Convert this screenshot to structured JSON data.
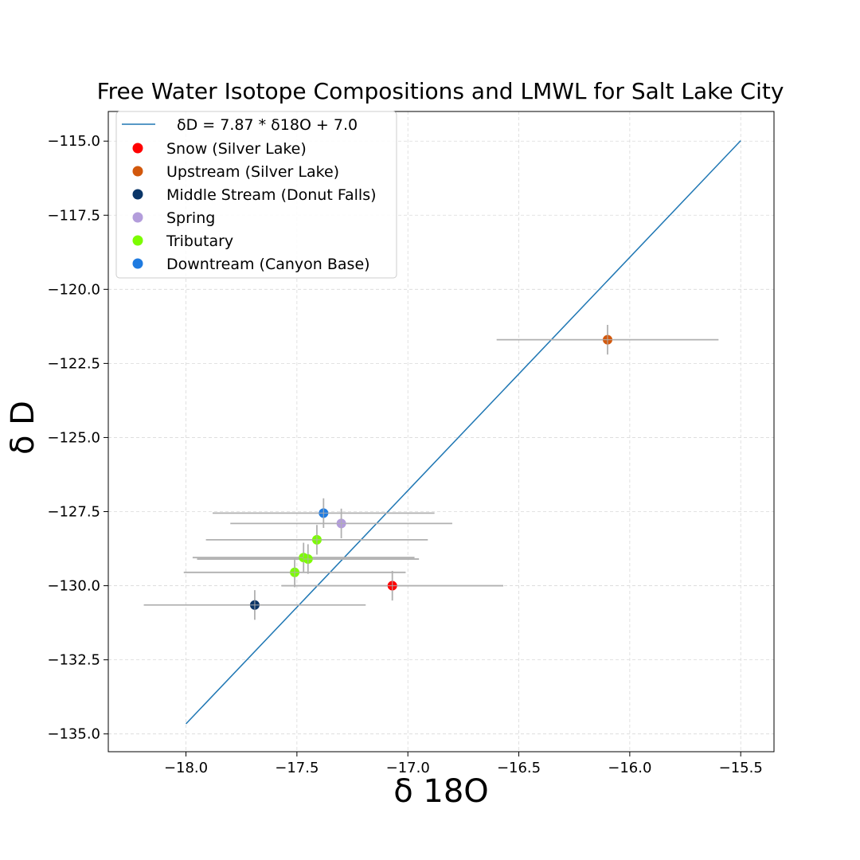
{
  "chart_data": {
    "type": "scatter",
    "title": "Free Water Isotope Compositions and LMWL for Salt Lake City",
    "xlabel": "δ 18O",
    "ylabel": "δ D",
    "xlim": [
      -18.35,
      -15.35
    ],
    "ylim": [
      -135.6,
      -114.0
    ],
    "xticks": [
      -18.0,
      -17.5,
      -17.0,
      -16.5,
      -16.0,
      -15.5
    ],
    "xtick_labels": [
      "−18.0",
      "−17.5",
      "−17.0",
      "−16.5",
      "−16.0",
      "−15.5"
    ],
    "yticks": [
      -135.0,
      -132.5,
      -130.0,
      -127.5,
      -125.0,
      -122.5,
      -120.0,
      -117.5,
      -115.0
    ],
    "ytick_labels": [
      "−135.0",
      "−132.5",
      "−130.0",
      "−127.5",
      "−125.0",
      "−122.5",
      "−120.0",
      "−117.5",
      "−115.0"
    ],
    "grid": true,
    "legend_position": "top-left",
    "lmwl": {
      "label": "δD = 7.87 * δ18O + 7.0",
      "slope": 7.87,
      "intercept": 7.0,
      "x_range": [
        -18.0,
        -15.5
      ],
      "color": "#1f77b4"
    },
    "error_color": "#b0b0b0",
    "series": [
      {
        "name": "Snow (Silver Lake)",
        "color": "#ff0000",
        "points": [
          {
            "x": -17.07,
            "y": -130.0,
            "xerr": 0.5,
            "yerr": 0.5
          }
        ]
      },
      {
        "name": "Upstream (Silver Lake)",
        "color": "#d2580c",
        "points": [
          {
            "x": -16.1,
            "y": -121.7,
            "xerr": 0.5,
            "yerr": 0.5
          }
        ]
      },
      {
        "name": "Middle Stream (Donut Falls)",
        "color": "#0b3668",
        "points": [
          {
            "x": -17.69,
            "y": -130.65,
            "xerr": 0.5,
            "yerr": 0.5
          }
        ]
      },
      {
        "name": "Spring",
        "color": "#b39ddb",
        "points": [
          {
            "x": -17.3,
            "y": -127.9,
            "xerr": 0.5,
            "yerr": 0.5
          }
        ]
      },
      {
        "name": "Tributary",
        "color": "#7cfc00",
        "points": [
          {
            "x": -17.41,
            "y": -128.45,
            "xerr": 0.5,
            "yerr": 0.5
          },
          {
            "x": -17.47,
            "y": -129.05,
            "xerr": 0.5,
            "yerr": 0.5
          },
          {
            "x": -17.45,
            "y": -129.1,
            "xerr": 0.5,
            "yerr": 0.5
          },
          {
            "x": -17.51,
            "y": -129.55,
            "xerr": 0.5,
            "yerr": 0.5
          }
        ]
      },
      {
        "name": "Downtream (Canyon Base)",
        "color": "#1f7be0",
        "points": [
          {
            "x": -17.38,
            "y": -127.55,
            "xerr": 0.5,
            "yerr": 0.5
          }
        ]
      }
    ]
  }
}
